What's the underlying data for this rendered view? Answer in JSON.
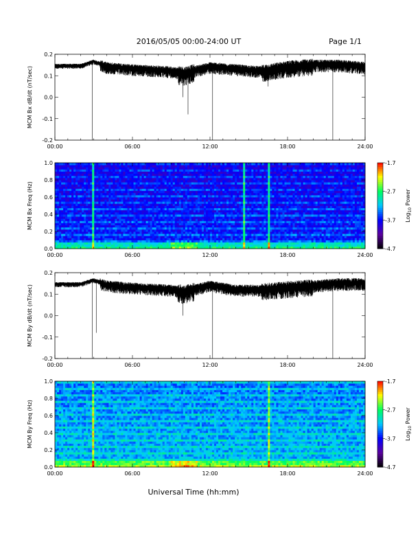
{
  "header": {
    "title": "2016/05/05  00:00-24:00 UT",
    "page": "Page 1/1"
  },
  "xlabel": "Universal Time (hh:mm)",
  "x_ticks": [
    "00:00",
    "06:00",
    "12:00",
    "18:00",
    "24:00"
  ],
  "colors": {
    "trace": "#000000",
    "axis": "#000000",
    "background": "#ffffff"
  },
  "colorbar": {
    "tick_labels": [
      "-1.7",
      "-2.7",
      "-3.7",
      "-4.7"
    ],
    "tick_values": [
      -1.7,
      -2.7,
      -3.7,
      -4.7
    ],
    "label_main": "Log",
    "label_sub": "10",
    "label_end": " Power",
    "range": [
      -4.7,
      -1.7
    ],
    "colormap": [
      "#000000",
      "#5a00a0",
      "#0000ff",
      "#00c8ff",
      "#00ff60",
      "#ffff00",
      "#ff0000"
    ]
  },
  "chart_data": [
    {
      "type": "line",
      "ylabel": "MCM Bx dB/dt (nT/sec)",
      "xlim": [
        0,
        24
      ],
      "ylim": [
        -0.2,
        0.2
      ],
      "y_ticks": [
        "0.2",
        "0.1",
        "0.0",
        "-0.1",
        "-0.2"
      ],
      "y_tick_values": [
        0.2,
        0.1,
        0.0,
        -0.1,
        -0.2
      ],
      "baseline": [
        [
          0,
          0.15
        ],
        [
          2,
          0.15
        ],
        [
          3,
          0.17
        ],
        [
          4,
          0.15
        ],
        [
          6,
          0.14
        ],
        [
          9,
          0.13
        ],
        [
          10,
          0.12
        ],
        [
          12,
          0.15
        ],
        [
          14,
          0.14
        ],
        [
          16,
          0.13
        ],
        [
          18,
          0.15
        ],
        [
          20,
          0.16
        ],
        [
          22,
          0.16
        ],
        [
          24,
          0.15
        ]
      ],
      "spikes": [
        [
          2.9,
          -0.2
        ],
        [
          10.3,
          -0.08
        ],
        [
          12.2,
          -0.2
        ],
        [
          21.5,
          -0.2
        ],
        [
          9.9,
          0.0
        ],
        [
          16.5,
          0.05
        ]
      ]
    },
    {
      "type": "heatmap",
      "ylabel": "MCM Bx Freq (Hz)",
      "xlim": [
        0,
        24
      ],
      "ylim": [
        0,
        1.0
      ],
      "y_ticks": [
        "1.0",
        "0.8",
        "0.6",
        "0.4",
        "0.2",
        "0.0"
      ],
      "y_tick_values": [
        1.0,
        0.8,
        0.6,
        0.4,
        0.2,
        0.0
      ],
      "zlim": [
        -4.7,
        -1.7
      ],
      "bright_lines_hours": [
        2.9,
        16.6,
        14.6
      ]
    },
    {
      "type": "line",
      "ylabel": "MCM By dB/dt (nT/sec)",
      "xlim": [
        0,
        24
      ],
      "ylim": [
        -0.2,
        0.2
      ],
      "y_ticks": [
        "0.2",
        "0.1",
        "0.0",
        "-0.1",
        "-0.2"
      ],
      "y_tick_values": [
        0.2,
        0.1,
        0.0,
        -0.1,
        -0.2
      ],
      "baseline": [
        [
          0,
          0.15
        ],
        [
          2,
          0.15
        ],
        [
          3,
          0.17
        ],
        [
          4,
          0.15
        ],
        [
          6,
          0.14
        ],
        [
          9,
          0.13
        ],
        [
          10,
          0.12
        ],
        [
          12,
          0.15
        ],
        [
          14,
          0.13
        ],
        [
          16,
          0.13
        ],
        [
          18,
          0.14
        ],
        [
          20,
          0.15
        ],
        [
          22,
          0.16
        ],
        [
          24,
          0.16
        ]
      ],
      "spikes": [
        [
          2.9,
          -0.2
        ],
        [
          3.2,
          -0.08
        ],
        [
          12.2,
          -0.2
        ],
        [
          21.5,
          -0.2
        ],
        [
          9.9,
          0.0
        ]
      ]
    },
    {
      "type": "heatmap",
      "ylabel": "MCM By Freq (Hz)",
      "xlim": [
        0,
        24
      ],
      "ylim": [
        0,
        1.0
      ],
      "y_ticks": [
        "1.0",
        "0.8",
        "0.6",
        "0.4",
        "0.2",
        "0.0"
      ],
      "y_tick_values": [
        1.0,
        0.8,
        0.6,
        0.4,
        0.2,
        0.0
      ],
      "zlim": [
        -4.7,
        -1.7
      ],
      "bright_lines_hours": [
        2.9,
        16.6
      ]
    }
  ]
}
